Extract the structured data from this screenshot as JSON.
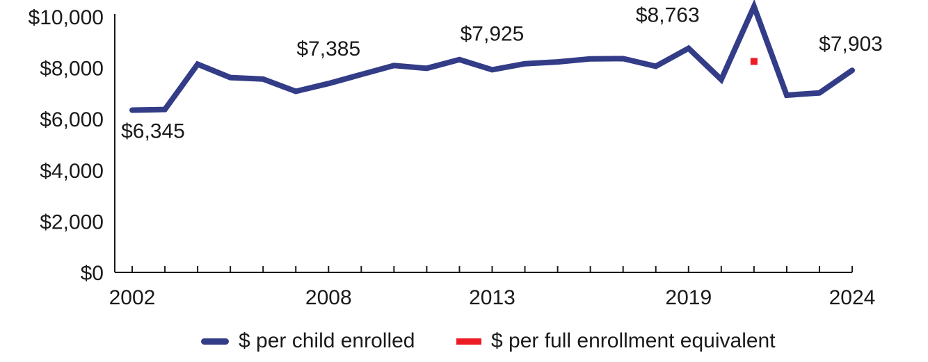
{
  "chart_data": {
    "type": "line",
    "x": [
      2002,
      2003,
      2004,
      2005,
      2006,
      2007,
      2008,
      2009,
      2010,
      2011,
      2012,
      2013,
      2014,
      2015,
      2016,
      2017,
      2018,
      2019,
      2020,
      2021,
      2022,
      2023,
      2024
    ],
    "x_tick_labels": [
      "2002",
      "2008",
      "2013",
      "2019",
      "2024"
    ],
    "x_tick_values": [
      2002,
      2008,
      2013,
      2019,
      2024
    ],
    "ylim": [
      0,
      10000
    ],
    "y_ticks": [
      0,
      2000,
      4000,
      6000,
      8000,
      10000
    ],
    "y_tick_labels": [
      "$0",
      "$2,000",
      "$4,000",
      "$6,000",
      "$8,000",
      "$10,000"
    ],
    "series": [
      {
        "name": "$ per child enrolled",
        "color": "#333c87",
        "values": [
          6345,
          6370,
          8140,
          7620,
          7560,
          7080,
          7385,
          7740,
          8090,
          7980,
          8320,
          7925,
          8160,
          8230,
          8350,
          8360,
          8060,
          8763,
          7540,
          10400,
          6930,
          7020,
          7903
        ]
      },
      {
        "name": "$ per full enrollment equivalent",
        "color": "#ed1c24",
        "points": [
          {
            "x": 2021,
            "y": 8250
          }
        ]
      }
    ],
    "data_labels": [
      {
        "x": 2002,
        "y": 6345,
        "text": "$6,345",
        "position": "below"
      },
      {
        "x": 2008,
        "y": 7385,
        "text": "$7,385",
        "position": "above"
      },
      {
        "x": 2013,
        "y": 7925,
        "text": "$7,925",
        "position": "above"
      },
      {
        "x": 2019,
        "y": 8763,
        "text": "$8,763",
        "position": "above"
      },
      {
        "x": 2024,
        "y": 7903,
        "text": "$7,903",
        "position": "above"
      }
    ],
    "grid": false,
    "legend_position": "bottom-center"
  }
}
